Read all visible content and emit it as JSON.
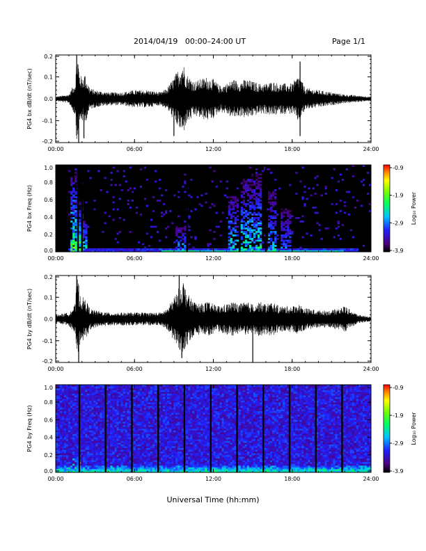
{
  "header": {
    "date_range": "2014/04/19   00:00–24:00 UT",
    "page": "Page 1/1"
  },
  "footer": {
    "xlabel": "Universal Time (hh:mm)"
  },
  "colorbar": {
    "ticks": [
      "-0.9",
      "-1.9",
      "-2.9",
      "-3.9"
    ],
    "label": "Log₁₀ Power",
    "range": [
      -3.9,
      -0.9
    ]
  },
  "colors": {
    "background_spectrogram_bx": "#000000",
    "trace": "#000000"
  },
  "chart_data": [
    {
      "type": "line",
      "ylabel": "PG4 bx dB/dt (nT/sec)",
      "xlabel": "",
      "x_ticks": [
        "00:00",
        "06:00",
        "12:00",
        "18:00",
        "24:00"
      ],
      "y_ticks": [
        "0.2",
        "0.1",
        "0.0",
        "-0.1",
        "-0.2"
      ],
      "xlim": [
        0,
        24
      ],
      "ylim": [
        -0.2,
        0.2
      ],
      "series": [
        {
          "x": [
            0,
            1,
            1.5,
            1.6,
            1.7,
            1.8,
            2.0,
            2.2,
            2.6,
            3,
            4,
            5,
            6,
            7,
            8,
            8.5,
            8.9,
            9.2,
            9.5,
            9.7,
            9.9,
            10.2,
            10.6,
            11,
            11.5,
            12,
            12.5,
            13,
            13.5,
            14,
            14.5,
            15,
            15.5,
            16,
            16.5,
            17,
            18,
            18.5,
            19,
            20,
            21,
            22,
            23,
            24
          ],
          "amplitude": [
            0.01,
            0.02,
            0.08,
            0.2,
            0.2,
            0.12,
            0.1,
            0.12,
            0.05,
            0.04,
            0.03,
            0.03,
            0.04,
            0.04,
            0.03,
            0.05,
            0.09,
            0.12,
            0.15,
            0.17,
            0.12,
            0.1,
            0.08,
            0.09,
            0.1,
            0.09,
            0.06,
            0.07,
            0.09,
            0.08,
            0.09,
            0.08,
            0.07,
            0.07,
            0.08,
            0.07,
            0.07,
            0.11,
            0.05,
            0.04,
            0.03,
            0.02,
            0.015,
            0.01
          ],
          "spikes": [
            {
              "x": 1.6,
              "y": 0.2
            },
            {
              "x": 1.75,
              "y": -0.2
            },
            {
              "x": 2.15,
              "y": -0.18
            },
            {
              "x": 9.0,
              "y": -0.17
            },
            {
              "x": 18.6,
              "y": 0.17
            },
            {
              "x": 18.6,
              "y": -0.17
            }
          ]
        }
      ]
    },
    {
      "type": "heatmap",
      "ylabel": "PG4 bx Freq (Hz)",
      "x_ticks": [
        "00:00",
        "06:00",
        "12:00",
        "18:00",
        "24:00"
      ],
      "y_ticks": [
        "1.0",
        "0.8",
        "0.6",
        "0.4",
        "0.2",
        "0.0"
      ],
      "xlim": [
        0,
        24
      ],
      "ylim": [
        0,
        1.0
      ],
      "colorbar_range": [
        -3.9,
        -0.9
      ],
      "gaps_hours": [
        1.7,
        2.0,
        10.0,
        14.0,
        16.0
      ],
      "bursts": [
        {
          "x": 1.4,
          "fmax": 0.95,
          "strength": 0.6
        },
        {
          "x": 1.7,
          "fmax": 0.6,
          "strength": 0.7
        },
        {
          "x": 2.0,
          "fmax": 0.4,
          "strength": 0.5
        },
        {
          "x": 9.5,
          "fmax": 0.3,
          "strength": 0.4
        },
        {
          "x": 13.5,
          "fmax": 0.65,
          "strength": 0.5
        },
        {
          "x": 14.5,
          "fmax": 0.85,
          "strength": 0.5
        },
        {
          "x": 15.3,
          "fmax": 0.9,
          "strength": 0.5
        },
        {
          "x": 16.5,
          "fmax": 0.7,
          "strength": 0.4
        },
        {
          "x": 17.5,
          "fmax": 0.5,
          "strength": 0.3
        }
      ]
    },
    {
      "type": "line",
      "ylabel": "PG4 by dB/dt (nT/sec)",
      "xlabel": "",
      "x_ticks": [
        "00:00",
        "06:00",
        "12:00",
        "18:00",
        "24:00"
      ],
      "y_ticks": [
        "0.2",
        "0.1",
        "0.0",
        "-0.1",
        "-0.2"
      ],
      "xlim": [
        0,
        24
      ],
      "ylim": [
        -0.2,
        0.2
      ],
      "series": [
        {
          "x": [
            0,
            1,
            1.5,
            1.6,
            1.7,
            1.8,
            2.0,
            2.2,
            2.6,
            3,
            4,
            5,
            6,
            7,
            8,
            8.5,
            8.9,
            9.2,
            9.5,
            9.7,
            9.9,
            10.2,
            10.6,
            11,
            11.5,
            12,
            12.5,
            13,
            13.5,
            14,
            14.5,
            15,
            15.5,
            16,
            16.5,
            17,
            18,
            18.5,
            19,
            20,
            21,
            22,
            23,
            24
          ],
          "amplitude": [
            0.02,
            0.03,
            0.07,
            0.18,
            0.2,
            0.13,
            0.1,
            0.1,
            0.05,
            0.04,
            0.03,
            0.03,
            0.03,
            0.03,
            0.03,
            0.05,
            0.09,
            0.12,
            0.16,
            0.18,
            0.14,
            0.1,
            0.08,
            0.07,
            0.08,
            0.07,
            0.06,
            0.07,
            0.08,
            0.07,
            0.08,
            0.07,
            0.08,
            0.07,
            0.08,
            0.06,
            0.06,
            0.07,
            0.05,
            0.04,
            0.04,
            0.06,
            0.02,
            0.01
          ],
          "spikes": [
            {
              "x": 1.6,
              "y": 0.2
            },
            {
              "x": 1.75,
              "y": -0.2
            },
            {
              "x": 9.4,
              "y": 0.2
            },
            {
              "x": 9.6,
              "y": -0.18
            },
            {
              "x": 15.0,
              "y": -0.2
            }
          ]
        }
      ]
    },
    {
      "type": "heatmap",
      "ylabel": "PG4 by Freq (Hz)",
      "x_ticks": [
        "00:00",
        "06:00",
        "12:00",
        "18:00",
        "24:00"
      ],
      "y_ticks": [
        "1.0",
        "0.8",
        "0.6",
        "0.4",
        "0.2",
        "0.0"
      ],
      "xlim": [
        0,
        24
      ],
      "ylim": [
        0,
        1.0
      ],
      "colorbar_range": [
        -3.9,
        -0.9
      ],
      "gaps_hours": [
        1.8,
        3.8,
        5.8,
        7.8,
        9.8,
        11.8,
        13.8,
        15.8,
        17.8,
        19.8,
        21.8
      ],
      "bursts": [
        {
          "x": 1.6,
          "fmax": 0.3,
          "strength": 0.6
        },
        {
          "x": 9.5,
          "fmax": 0.15,
          "strength": 0.5
        },
        {
          "x": 13.5,
          "fmax": 0.1,
          "strength": 0.4
        }
      ]
    }
  ]
}
